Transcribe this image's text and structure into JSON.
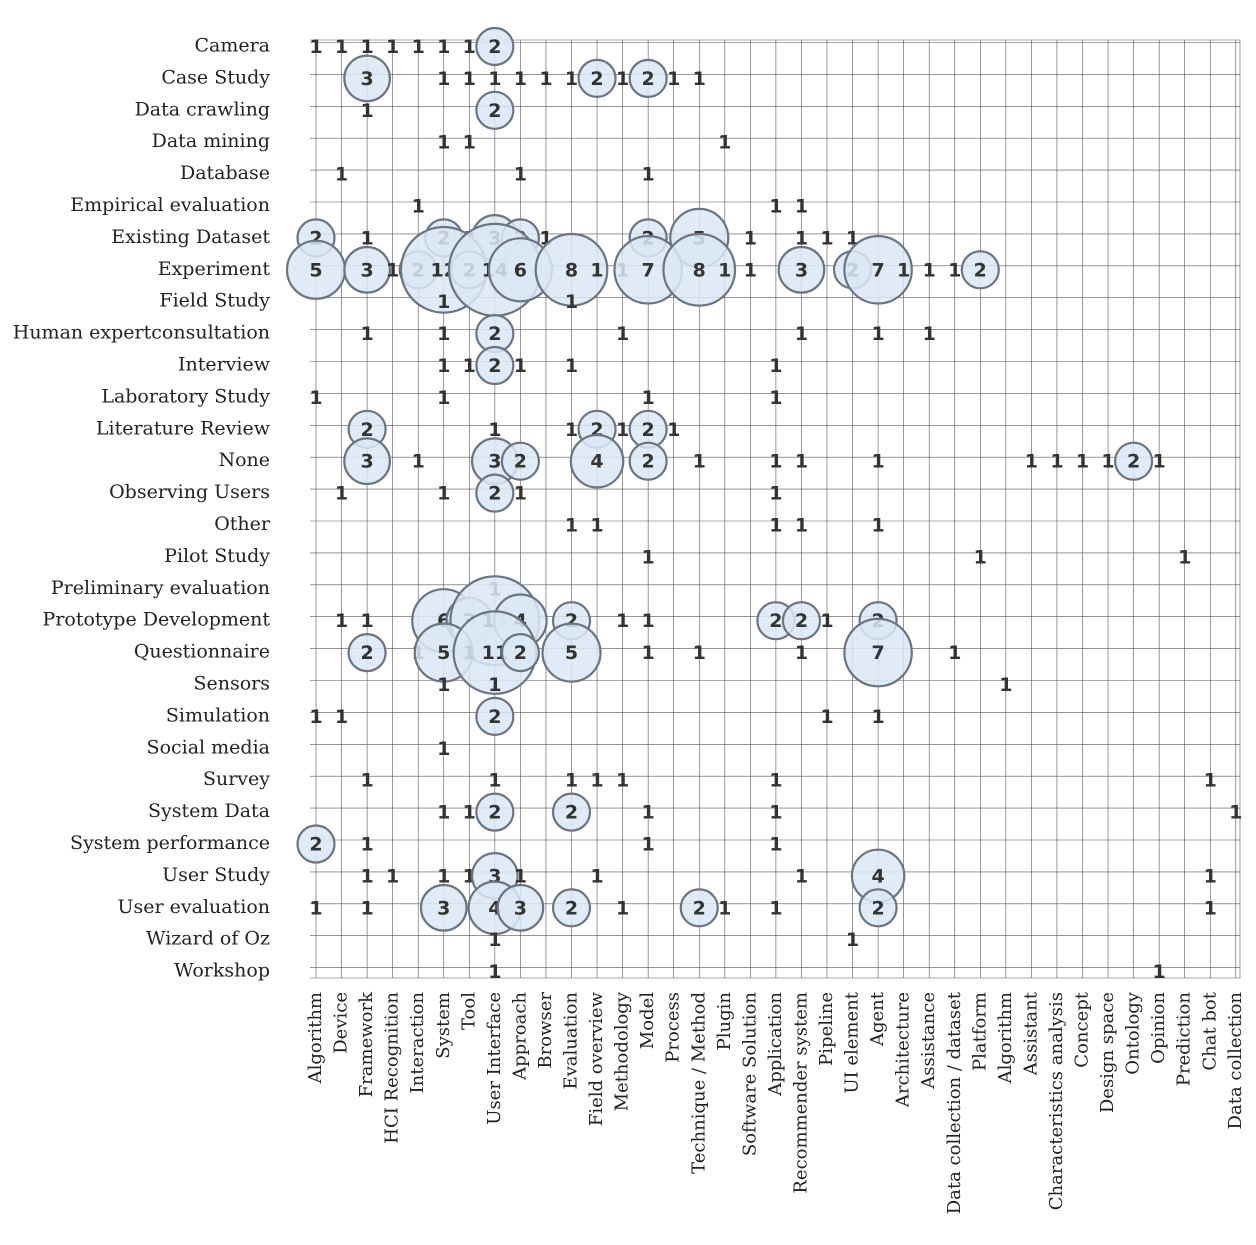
{
  "chart_data": {
    "type": "bubble-matrix",
    "rows": [
      "Camera",
      "Case Study",
      "Data crawling",
      "Data mining",
      "Database",
      "Empirical evaluation",
      "Existing Dataset",
      "Experiment",
      "Field Study",
      "Human expertconsultation",
      "Interview",
      "Laboratory Study",
      "Literature Review",
      "None",
      "Observing Users",
      "Other",
      "Pilot Study",
      "Preliminary evaluation",
      "Prototype Development",
      "Questionnaire",
      "Sensors",
      "Simulation",
      "Social media",
      "Survey",
      "System Data",
      "System performance",
      "User Study",
      "User evaluation",
      "Wizard of Oz",
      "Workshop"
    ],
    "columns": [
      "Algorithm",
      "Device",
      "Framework",
      "HCI Recognition",
      "Interaction",
      "System",
      "Tool",
      "User Interface",
      "Approach",
      "Browser",
      "Evaluation",
      "Field overview",
      "Methodology",
      "Model",
      "Process",
      "Technique / Method",
      "Plugin",
      "Software Solution",
      "Application",
      "Recommender system",
      "Pipeline",
      "UI element",
      "Agent",
      "Architecture",
      "Assistance",
      "Data collection / dataset",
      "Platform",
      "Algorithm",
      "Assistant",
      "Characteristics analysis",
      "Concept",
      "Design space",
      "Ontology",
      "Opinion",
      "Prediction",
      "Chat bot",
      "Data collection"
    ],
    "cells": [
      [
        0,
        0,
        1
      ],
      [
        0,
        1,
        1
      ],
      [
        0,
        2,
        1
      ],
      [
        0,
        3,
        1
      ],
      [
        0,
        4,
        1
      ],
      [
        0,
        5,
        1
      ],
      [
        0,
        6,
        1
      ],
      [
        0,
        7,
        2
      ],
      [
        1,
        2,
        3
      ],
      [
        1,
        5,
        1
      ],
      [
        1,
        6,
        1
      ],
      [
        1,
        7,
        1
      ],
      [
        1,
        8,
        1
      ],
      [
        1,
        9,
        1
      ],
      [
        1,
        10,
        1
      ],
      [
        1,
        11,
        2
      ],
      [
        1,
        12,
        1
      ],
      [
        1,
        13,
        2
      ],
      [
        1,
        14,
        1
      ],
      [
        1,
        15,
        1
      ],
      [
        2,
        2,
        1
      ],
      [
        2,
        7,
        2
      ],
      [
        3,
        5,
        1
      ],
      [
        3,
        6,
        1
      ],
      [
        3,
        16,
        1
      ],
      [
        4,
        1,
        1
      ],
      [
        4,
        8,
        1
      ],
      [
        4,
        13,
        1
      ],
      [
        5,
        4,
        1
      ],
      [
        5,
        18,
        1
      ],
      [
        5,
        19,
        1
      ],
      [
        6,
        0,
        2
      ],
      [
        6,
        2,
        1
      ],
      [
        6,
        5,
        2
      ],
      [
        6,
        6,
        1
      ],
      [
        6,
        7,
        3
      ],
      [
        6,
        8,
        2
      ],
      [
        6,
        9,
        1
      ],
      [
        6,
        13,
        2
      ],
      [
        6,
        15,
        5
      ],
      [
        6,
        17,
        1
      ],
      [
        6,
        19,
        1
      ],
      [
        6,
        20,
        1
      ],
      [
        6,
        21,
        1
      ],
      [
        7,
        0,
        5
      ],
      [
        7,
        2,
        3
      ],
      [
        7,
        3,
        1
      ],
      [
        7,
        4,
        2
      ],
      [
        7,
        5,
        12
      ],
      [
        7,
        6,
        2
      ],
      [
        7,
        7,
        14
      ],
      [
        7,
        8,
        6
      ],
      [
        7,
        10,
        8
      ],
      [
        7,
        11,
        1
      ],
      [
        7,
        12,
        1
      ],
      [
        7,
        13,
        7
      ],
      [
        7,
        15,
        8
      ],
      [
        7,
        16,
        1
      ],
      [
        7,
        17,
        1
      ],
      [
        7,
        19,
        3
      ],
      [
        7,
        21,
        2
      ],
      [
        7,
        22,
        7
      ],
      [
        7,
        23,
        1
      ],
      [
        7,
        24,
        1
      ],
      [
        7,
        25,
        1
      ],
      [
        7,
        26,
        2
      ],
      [
        8,
        5,
        1
      ],
      [
        8,
        10,
        1
      ],
      [
        9,
        2,
        1
      ],
      [
        9,
        5,
        1
      ],
      [
        9,
        7,
        2
      ],
      [
        9,
        12,
        1
      ],
      [
        9,
        19,
        1
      ],
      [
        9,
        22,
        1
      ],
      [
        9,
        24,
        1
      ],
      [
        10,
        5,
        1
      ],
      [
        10,
        6,
        1
      ],
      [
        10,
        7,
        2
      ],
      [
        10,
        8,
        1
      ],
      [
        10,
        10,
        1
      ],
      [
        10,
        18,
        1
      ],
      [
        11,
        0,
        1
      ],
      [
        11,
        5,
        1
      ],
      [
        11,
        13,
        1
      ],
      [
        11,
        18,
        1
      ],
      [
        12,
        2,
        2
      ],
      [
        12,
        7,
        1
      ],
      [
        12,
        10,
        1
      ],
      [
        12,
        11,
        2
      ],
      [
        12,
        12,
        1
      ],
      [
        12,
        13,
        2
      ],
      [
        12,
        14,
        1
      ],
      [
        13,
        2,
        3
      ],
      [
        13,
        4,
        1
      ],
      [
        13,
        7,
        3
      ],
      [
        13,
        8,
        2
      ],
      [
        13,
        11,
        4
      ],
      [
        13,
        13,
        2
      ],
      [
        13,
        15,
        1
      ],
      [
        13,
        18,
        1
      ],
      [
        13,
        19,
        1
      ],
      [
        13,
        22,
        1
      ],
      [
        13,
        28,
        1
      ],
      [
        13,
        29,
        1
      ],
      [
        13,
        30,
        1
      ],
      [
        13,
        31,
        1
      ],
      [
        13,
        32,
        2
      ],
      [
        13,
        33,
        1
      ],
      [
        14,
        1,
        1
      ],
      [
        14,
        5,
        1
      ],
      [
        14,
        7,
        2
      ],
      [
        14,
        8,
        1
      ],
      [
        14,
        18,
        1
      ],
      [
        15,
        10,
        1
      ],
      [
        15,
        11,
        1
      ],
      [
        15,
        18,
        1
      ],
      [
        15,
        19,
        1
      ],
      [
        15,
        22,
        1
      ],
      [
        16,
        13,
        1
      ],
      [
        16,
        26,
        1
      ],
      [
        16,
        34,
        1
      ],
      [
        17,
        7,
        1
      ],
      [
        18,
        1,
        1
      ],
      [
        18,
        2,
        1
      ],
      [
        18,
        5,
        6
      ],
      [
        18,
        6,
        3
      ],
      [
        18,
        7,
        13
      ],
      [
        18,
        8,
        4
      ],
      [
        18,
        10,
        2
      ],
      [
        18,
        12,
        1
      ],
      [
        18,
        13,
        1
      ],
      [
        18,
        18,
        2
      ],
      [
        18,
        19,
        2
      ],
      [
        18,
        20,
        1
      ],
      [
        18,
        22,
        2
      ],
      [
        19,
        2,
        2
      ],
      [
        19,
        4,
        1
      ],
      [
        19,
        5,
        5
      ],
      [
        19,
        6,
        1
      ],
      [
        19,
        7,
        11
      ],
      [
        19,
        8,
        2
      ],
      [
        19,
        10,
        5
      ],
      [
        19,
        13,
        1
      ],
      [
        19,
        15,
        1
      ],
      [
        19,
        19,
        1
      ],
      [
        19,
        22,
        7
      ],
      [
        19,
        25,
        1
      ],
      [
        20,
        5,
        1
      ],
      [
        20,
        7,
        1
      ],
      [
        20,
        27,
        1
      ],
      [
        21,
        0,
        1
      ],
      [
        21,
        1,
        1
      ],
      [
        21,
        7,
        2
      ],
      [
        21,
        20,
        1
      ],
      [
        21,
        22,
        1
      ],
      [
        22,
        5,
        1
      ],
      [
        23,
        2,
        1
      ],
      [
        23,
        7,
        1
      ],
      [
        23,
        10,
        1
      ],
      [
        23,
        11,
        1
      ],
      [
        23,
        12,
        1
      ],
      [
        23,
        18,
        1
      ],
      [
        23,
        35,
        1
      ],
      [
        24,
        5,
        1
      ],
      [
        24,
        6,
        1
      ],
      [
        24,
        7,
        2
      ],
      [
        24,
        10,
        2
      ],
      [
        24,
        13,
        1
      ],
      [
        24,
        18,
        1
      ],
      [
        24,
        36,
        1
      ],
      [
        25,
        0,
        2
      ],
      [
        25,
        2,
        1
      ],
      [
        25,
        13,
        1
      ],
      [
        25,
        18,
        1
      ],
      [
        26,
        2,
        1
      ],
      [
        26,
        3,
        1
      ],
      [
        26,
        5,
        1
      ],
      [
        26,
        6,
        1
      ],
      [
        26,
        7,
        3
      ],
      [
        26,
        8,
        1
      ],
      [
        26,
        11,
        1
      ],
      [
        26,
        19,
        1
      ],
      [
        26,
        22,
        4
      ],
      [
        26,
        35,
        1
      ],
      [
        27,
        0,
        1
      ],
      [
        27,
        2,
        1
      ],
      [
        27,
        5,
        3
      ],
      [
        27,
        7,
        4
      ],
      [
        27,
        8,
        3
      ],
      [
        27,
        10,
        2
      ],
      [
        27,
        12,
        1
      ],
      [
        27,
        15,
        2
      ],
      [
        27,
        16,
        1
      ],
      [
        27,
        18,
        1
      ],
      [
        27,
        22,
        2
      ],
      [
        27,
        35,
        1
      ],
      [
        28,
        7,
        1
      ],
      [
        28,
        21,
        1
      ],
      [
        29,
        7,
        1
      ],
      [
        29,
        33,
        1
      ]
    ],
    "colors": {
      "bubble_fill": "#dbe8f6",
      "bubble_stroke": "#6b7480",
      "grid": "#555555",
      "text": "#333333"
    }
  }
}
